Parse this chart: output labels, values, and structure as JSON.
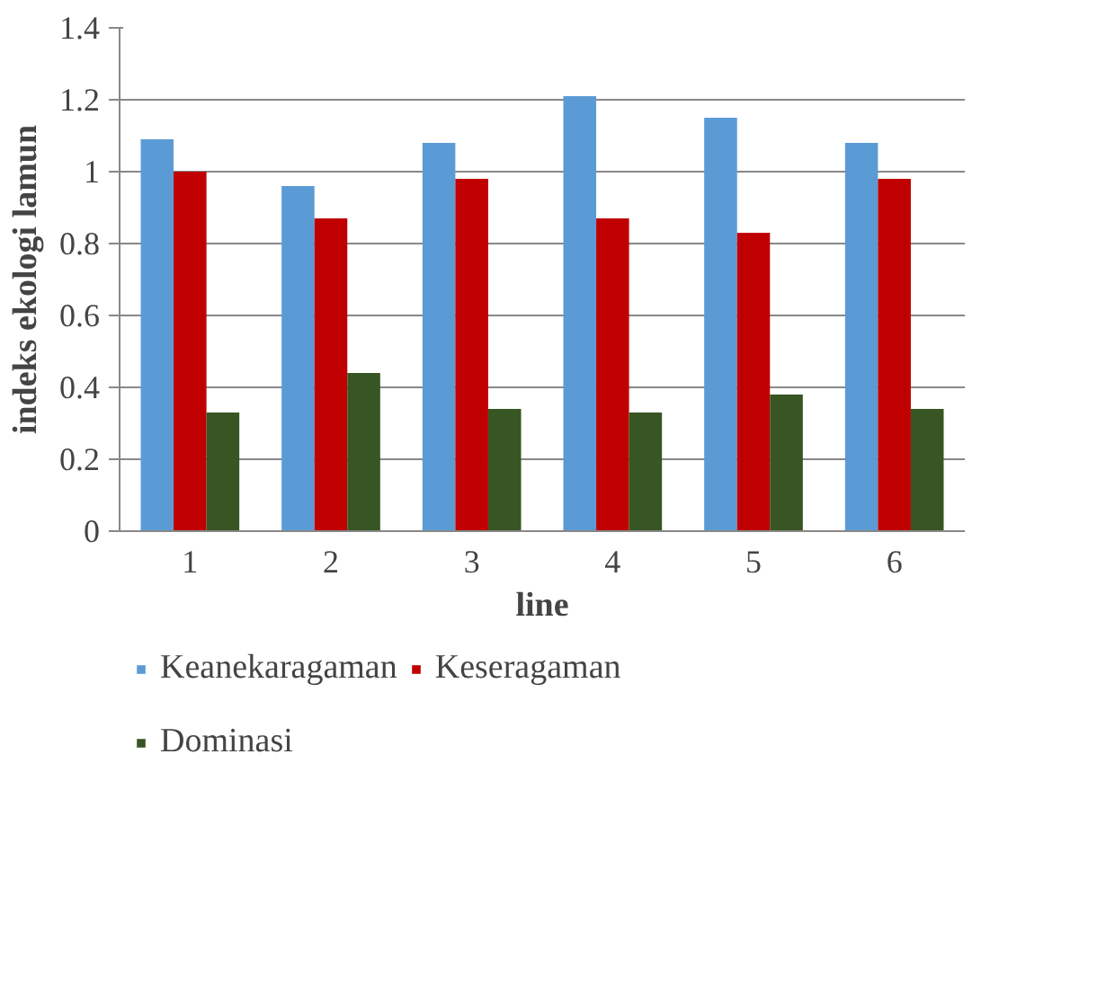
{
  "chart_data": {
    "type": "bar",
    "xlabel": "line",
    "ylabel": "indeks ekologi lamun",
    "categories": [
      "1",
      "2",
      "3",
      "4",
      "5",
      "6"
    ],
    "series": [
      {
        "name": "Keanekaragaman",
        "color": "#5b9bd5",
        "values": [
          1.09,
          0.96,
          1.08,
          1.21,
          1.15,
          1.08
        ]
      },
      {
        "name": "Keseragaman",
        "color": "#c00000",
        "values": [
          1.0,
          0.87,
          0.98,
          0.87,
          0.83,
          0.98
        ]
      },
      {
        "name": "Dominasi",
        "color": "#375623",
        "values": [
          0.33,
          0.44,
          0.34,
          0.33,
          0.38,
          0.34
        ]
      }
    ],
    "ylim": [
      0,
      1.4
    ],
    "yticks": [
      0,
      {
        "value": 0.2,
        "label": "0.2"
      },
      {
        "value": 0.4,
        "label": "0.4"
      },
      {
        "value": 0.6,
        "label": "0.6"
      },
      {
        "value": 0.8,
        "label": "0.8"
      },
      1,
      {
        "value": 1.2,
        "label": "1.2"
      },
      {
        "value": 1.4,
        "label": "1.4"
      }
    ],
    "grid": "y",
    "legend": "bottom"
  }
}
